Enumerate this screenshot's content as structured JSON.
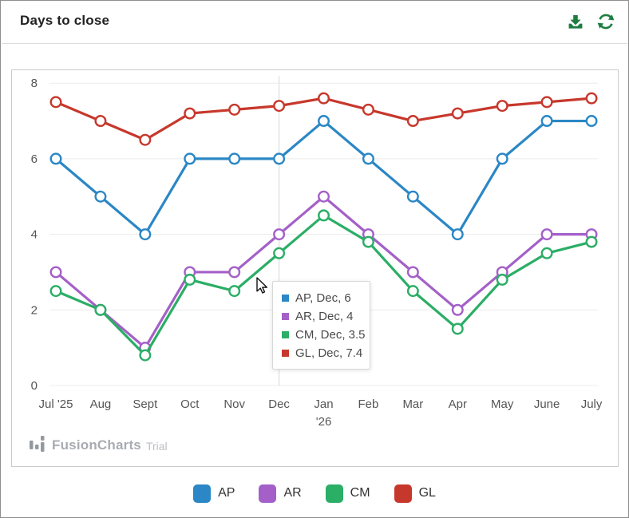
{
  "header": {
    "title": "Days to close",
    "icons": [
      {
        "name": "download-icon",
        "color": "#1d7d40"
      },
      {
        "name": "refresh-icon",
        "color": "#1d7d40"
      }
    ]
  },
  "chart_data": {
    "type": "line",
    "title": "Days to close",
    "categories": [
      "Jul '25",
      "Aug",
      "Sept",
      "Oct",
      "Nov",
      "Dec",
      "Jan\n'26",
      "Feb",
      "Mar",
      "Apr",
      "May",
      "June",
      "July"
    ],
    "series": [
      {
        "name": "AP",
        "color": "#2b87c5",
        "values": [
          6,
          5,
          4,
          6,
          6,
          6,
          7,
          6,
          5,
          4,
          6,
          7,
          7
        ]
      },
      {
        "name": "AR",
        "color": "#a460c8",
        "values": [
          3,
          2,
          1,
          3,
          3,
          4,
          5,
          4,
          3,
          2,
          3,
          4,
          4
        ]
      },
      {
        "name": "CM",
        "color": "#2bae66",
        "values": [
          2.5,
          2,
          0.8,
          2.8,
          2.5,
          3.5,
          4.5,
          3.8,
          2.5,
          1.5,
          2.8,
          3.5,
          3.8
        ]
      },
      {
        "name": "GL",
        "color": "#c7382c",
        "values": [
          7.5,
          7,
          6.5,
          7.2,
          7.3,
          7.4,
          7.6,
          7.3,
          7,
          7.2,
          7.4,
          7.5,
          7.6
        ]
      }
    ],
    "ylim": [
      0,
      8
    ],
    "yticks": [
      0,
      2,
      4,
      6,
      8
    ],
    "grid": "horizontal",
    "hovered_category": "Dec",
    "hovered_category_index": 5,
    "legend_position": "bottom"
  },
  "tooltip": {
    "rows": [
      {
        "series": "AP",
        "label": "AP, Dec, 6",
        "color": "#2b87c5"
      },
      {
        "series": "AR",
        "label": "AR, Dec, 4",
        "color": "#a460c8"
      },
      {
        "series": "CM",
        "label": "CM, Dec, 3.5",
        "color": "#2bae66"
      },
      {
        "series": "GL",
        "label": "GL, Dec, 7.4",
        "color": "#c7382c"
      }
    ]
  },
  "legend": {
    "items": [
      {
        "label": "AP",
        "color": "#2b87c5"
      },
      {
        "label": "AR",
        "color": "#a460c8"
      },
      {
        "label": "CM",
        "color": "#2bae66"
      },
      {
        "label": "GL",
        "color": "#c7382c"
      }
    ]
  },
  "watermark": {
    "brand": "FusionCharts",
    "suffix": "Trial"
  },
  "colors": {
    "grid_line": "#ececec",
    "crosshair": "#e4e4e4",
    "axis_text": "#555555",
    "panel_border": "#cbcbcb",
    "icon_green": "#1d7d40"
  }
}
